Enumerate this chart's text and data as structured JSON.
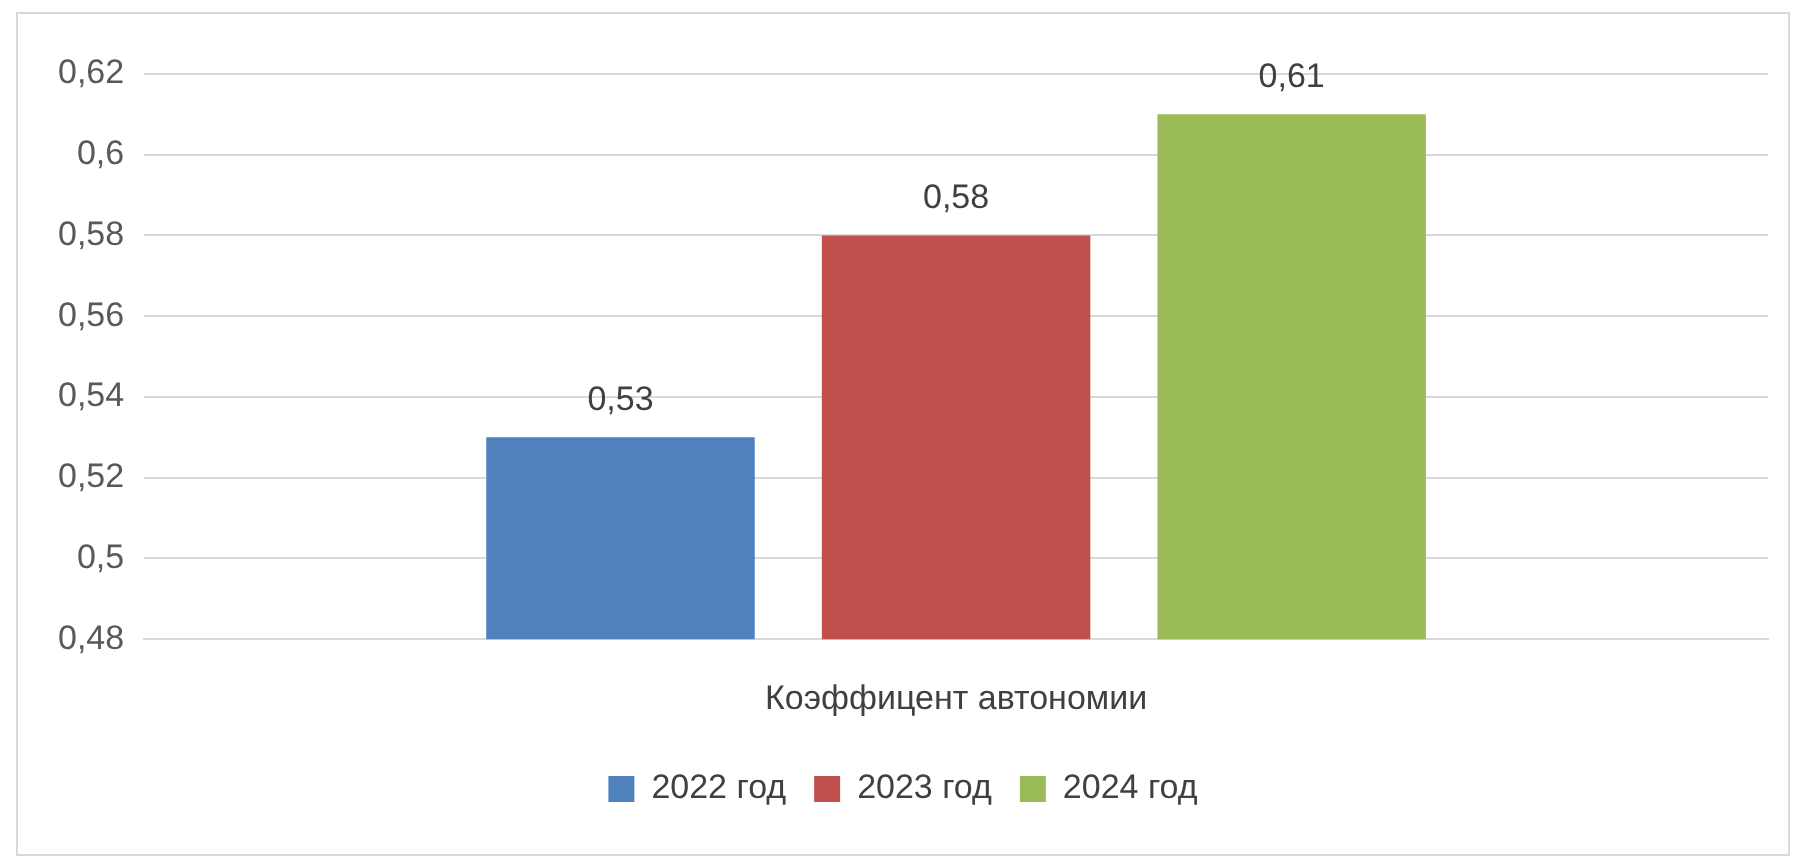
{
  "chart_data": {
    "type": "bar",
    "categories": [
      "Коэффицент автономии"
    ],
    "series": [
      {
        "name": "2022 год",
        "color": "#4f81bd",
        "values": [
          0.53
        ],
        "value_labels": [
          "0,53"
        ]
      },
      {
        "name": "2023 год",
        "color": "#c0504d",
        "values": [
          0.58
        ],
        "value_labels": [
          "0,58"
        ]
      },
      {
        "name": "2024 год",
        "color": "#9bbb59",
        "values": [
          0.61
        ],
        "value_labels": [
          "0,61"
        ]
      }
    ],
    "ylim": [
      0.48,
      0.62
    ],
    "yticks": [
      {
        "value": 0.48,
        "label": "0,48"
      },
      {
        "value": 0.5,
        "label": "0,5"
      },
      {
        "value": 0.52,
        "label": "0,52"
      },
      {
        "value": 0.54,
        "label": "0,54"
      },
      {
        "value": 0.56,
        "label": "0,56"
      },
      {
        "value": 0.58,
        "label": "0,58"
      },
      {
        "value": 0.6,
        "label": "0,6"
      },
      {
        "value": 0.62,
        "label": "0,62"
      }
    ],
    "grid": "y",
    "legend": "bottom"
  }
}
